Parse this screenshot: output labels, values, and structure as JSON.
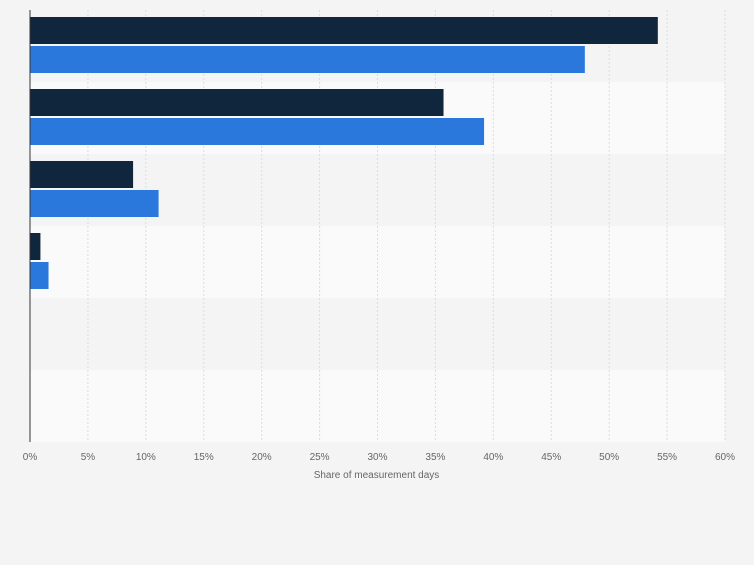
{
  "chart_data": {
    "type": "bar",
    "orientation": "horizontal",
    "title": "",
    "xlabel": "Share of measurement days",
    "ylabel": "",
    "xlim": [
      0,
      60
    ],
    "x_ticks": [
      0,
      5,
      10,
      15,
      20,
      25,
      30,
      35,
      40,
      45,
      50,
      55,
      60
    ],
    "tick_suffix": "%",
    "categories": [
      "",
      "",
      "",
      "",
      "",
      ""
    ],
    "series": [
      {
        "color": "#10263d",
        "values": [
          54.2,
          35.7,
          8.9,
          0.9,
          0,
          0
        ]
      },
      {
        "color": "#2a78db",
        "values": [
          47.9,
          39.2,
          11.1,
          1.6,
          0,
          0
        ]
      }
    ],
    "grid": true,
    "legend": "none",
    "band_colors": [
      "#f4f4f4",
      "#fafafa"
    ]
  }
}
